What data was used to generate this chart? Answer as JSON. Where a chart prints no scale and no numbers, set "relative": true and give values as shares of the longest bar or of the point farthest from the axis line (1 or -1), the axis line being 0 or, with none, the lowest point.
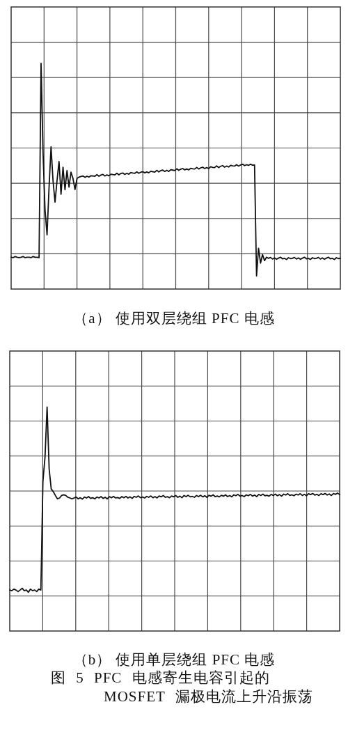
{
  "chart_data": [
    {
      "type": "line",
      "title": "（a） 使用双层绕组 PFC 电感",
      "relative": true,
      "grid": true,
      "color": "#111111",
      "categories": [
        null,
        null,
        null,
        null,
        null,
        null,
        null,
        null,
        null,
        null,
        null,
        null,
        null,
        null,
        null,
        null,
        null,
        null,
        null,
        null,
        null,
        null,
        null,
        null,
        null,
        null,
        null,
        null,
        null,
        null,
        null,
        null,
        null,
        null,
        null,
        null,
        null,
        null,
        null,
        null,
        null,
        null,
        null,
        null,
        null,
        null,
        null,
        null,
        null,
        null,
        null,
        null,
        null,
        null,
        null,
        null,
        null,
        null,
        null,
        null,
        null,
        null,
        null,
        null,
        null,
        null,
        null,
        null,
        null,
        null,
        null,
        null,
        null,
        null,
        null,
        null,
        null,
        null,
        null,
        null,
        null,
        null,
        null,
        null,
        null,
        null,
        null,
        null,
        null,
        null,
        null,
        null,
        null,
        null,
        null,
        null,
        null,
        null,
        null,
        null,
        null,
        null,
        null,
        null,
        null,
        null,
        null,
        null,
        null,
        null,
        null,
        null,
        null,
        null,
        null,
        null,
        null,
        null,
        null,
        null,
        null,
        null,
        null,
        null,
        null,
        null,
        null,
        null,
        null,
        null,
        null,
        null,
        null,
        null,
        null,
        null,
        null,
        null,
        null,
        null,
        null,
        null,
        null,
        null,
        null,
        null,
        null,
        null,
        null,
        null,
        null,
        null,
        null,
        null,
        null,
        null,
        null,
        null,
        null,
        null,
        null,
        null,
        null,
        null,
        null,
        null
      ],
      "values": [
        0.141,
        0.139,
        0.144,
        0.141,
        0.139,
        0.141,
        0.144,
        0.139,
        0.141,
        0.141,
        0.139,
        0.144,
        0.141,
        0.141,
        0.139,
        1,
        0.6,
        0.35,
        0.24,
        0.45,
        0.63,
        0.48,
        0.385,
        0.48,
        0.565,
        0.42,
        0.54,
        0.44,
        0.525,
        0.452,
        0.518,
        0.49,
        0.441,
        0.49,
        0.496,
        0.499,
        0.501,
        0.495,
        0.5,
        0.496,
        0.502,
        0.501,
        0.5,
        0.507,
        0.5,
        0.505,
        0.508,
        0.501,
        0.506,
        0.502,
        0.509,
        0.507,
        0.506,
        0.513,
        0.506,
        0.512,
        0.514,
        0.508,
        0.513,
        0.509,
        0.516,
        0.514,
        0.513,
        0.519,
        0.513,
        0.518,
        0.52,
        0.515,
        0.519,
        0.515,
        0.522,
        0.52,
        0.518,
        0.526,
        0.519,
        0.525,
        0.527,
        0.521,
        0.526,
        0.521,
        0.529,
        0.527,
        0.525,
        0.533,
        0.526,
        0.531,
        0.534,
        0.528,
        0.532,
        0.528,
        0.535,
        0.533,
        0.532,
        0.539,
        0.532,
        0.537,
        0.54,
        0.534,
        0.538,
        0.534,
        0.542,
        0.539,
        0.538,
        0.546,
        0.538,
        0.544,
        0.547,
        0.54,
        0.545,
        0.541,
        0.548,
        0.546,
        0.545,
        0.551,
        0.545,
        0.55,
        0.553,
        0.547,
        0.551,
        0.548,
        0.553,
        0.549,
        0.55,
        0.058,
        0.181,
        0.115,
        0.153,
        0.126,
        0.141,
        0.136,
        0.14,
        0.133,
        0.138,
        0.132,
        0.137,
        0.141,
        0.134,
        0.136,
        0.131,
        0.139,
        0.135,
        0.136,
        0.14,
        0.133,
        0.138,
        0.132,
        0.137,
        0.141,
        0.134,
        0.136,
        0.131,
        0.139,
        0.135,
        0.136,
        0.14,
        0.133,
        0.138,
        0.132,
        0.137,
        0.141,
        0.134,
        0.136,
        0.131,
        0.139,
        0.135,
        0.136
      ]
    },
    {
      "type": "line",
      "title": "（b） 使用单层绕组 PFC 电感",
      "relative": true,
      "grid": true,
      "color": "#111111",
      "categories": [
        null,
        null,
        null,
        null,
        null,
        null,
        null,
        null,
        null,
        null,
        null,
        null,
        null,
        null,
        null,
        null,
        null,
        null,
        null,
        null,
        null,
        null,
        null,
        null,
        null,
        null,
        null,
        null,
        null,
        null,
        null,
        null,
        null,
        null,
        null,
        null,
        null,
        null,
        null,
        null,
        null,
        null,
        null,
        null,
        null,
        null,
        null,
        null,
        null,
        null,
        null,
        null,
        null,
        null,
        null,
        null,
        null,
        null,
        null,
        null,
        null,
        null,
        null,
        null,
        null,
        null,
        null,
        null,
        null,
        null,
        null,
        null,
        null,
        null,
        null,
        null,
        null,
        null,
        null,
        null,
        null,
        null,
        null,
        null,
        null,
        null,
        null,
        null,
        null,
        null,
        null,
        null,
        null,
        null,
        null,
        null,
        null,
        null,
        null,
        null,
        null,
        null,
        null,
        null,
        null,
        null,
        null,
        null,
        null,
        null,
        null,
        null,
        null,
        null,
        null,
        null,
        null,
        null,
        null,
        null,
        null,
        null,
        null,
        null,
        null,
        null,
        null,
        null,
        null,
        null,
        null,
        null,
        null,
        null,
        null,
        null,
        null,
        null,
        null,
        null,
        null,
        null,
        null,
        null,
        null,
        null,
        null,
        null,
        null,
        null,
        null,
        null,
        null,
        null,
        null,
        null,
        null,
        null,
        null,
        null
      ],
      "values": [
        0.183,
        0.18,
        0.187,
        0.183,
        0.176,
        0.183,
        0.191,
        0.18,
        0.183,
        0.173,
        0.187,
        0.18,
        0.183,
        0.176,
        0.187,
        0.183,
        0.669,
        0.777,
        1,
        0.723,
        0.634,
        0.622,
        0.605,
        0.59,
        0.594,
        0.605,
        0.608,
        0.605,
        0.597,
        0.594,
        0.59,
        0.594,
        0.598,
        0.59,
        0.595,
        0.589,
        0.598,
        0.594,
        0.6,
        0.592,
        0.595,
        0.59,
        0.598,
        0.594,
        0.6,
        0.592,
        0.597,
        0.59,
        0.6,
        0.595,
        0.601,
        0.594,
        0.596,
        0.592,
        0.6,
        0.595,
        0.601,
        0.594,
        0.599,
        0.592,
        0.601,
        0.597,
        0.603,
        0.595,
        0.598,
        0.594,
        0.601,
        0.597,
        0.603,
        0.595,
        0.6,
        0.594,
        0.603,
        0.599,
        0.605,
        0.597,
        0.6,
        0.595,
        0.603,
        0.599,
        0.605,
        0.597,
        0.602,
        0.595,
        0.605,
        0.6,
        0.606,
        0.599,
        0.601,
        0.597,
        0.605,
        0.6,
        0.606,
        0.599,
        0.604,
        0.597,
        0.606,
        0.602,
        0.608,
        0.6,
        0.603,
        0.599,
        0.606,
        0.602,
        0.608,
        0.6,
        0.605,
        0.599,
        0.608,
        0.604,
        0.61,
        0.602,
        0.605,
        0.6,
        0.608,
        0.604,
        0.61,
        0.602,
        0.607,
        0.6,
        0.61,
        0.605,
        0.611,
        0.604,
        0.606,
        0.602,
        0.61,
        0.605,
        0.611,
        0.604,
        0.609,
        0.602,
        0.611,
        0.607,
        0.613,
        0.605,
        0.608,
        0.604,
        0.611,
        0.607,
        0.613,
        0.605,
        0.61,
        0.604,
        0.613,
        0.609,
        0.614,
        0.607,
        0.61,
        0.605,
        0.613,
        0.609,
        0.614,
        0.607,
        0.612,
        0.605,
        0.614,
        0.61,
        0.616,
        0.609
      ],
      "annotations": [
        "图 5 PFC 电感寄生电容引起的 MOSFET 漏极电流上升沿振荡"
      ]
    }
  ]
}
